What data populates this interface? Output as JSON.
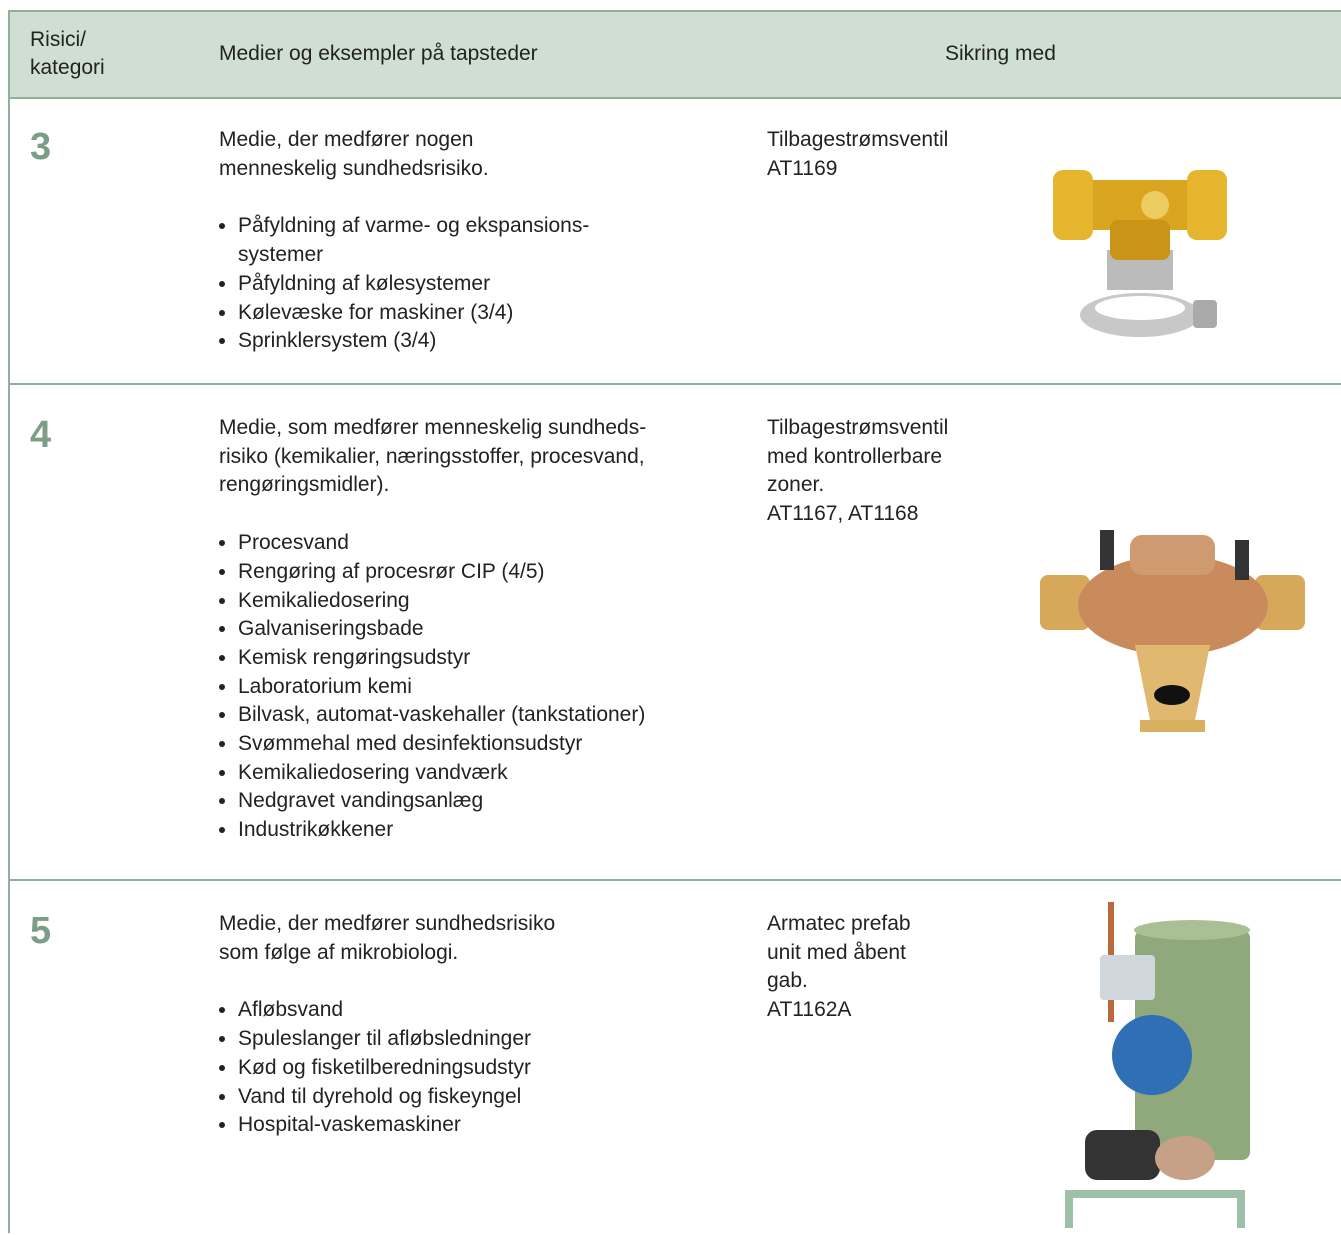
{
  "header": {
    "category": [
      "Risici/",
      "kategori"
    ],
    "media": "Medier og eksempler på tapsteder",
    "protection": "Sikring med"
  },
  "rows": [
    {
      "category": "3",
      "description": [
        "Medie, der medfører nogen",
        "menneskelig sundhedsrisiko."
      ],
      "examples": [
        [
          "Påfyldning af varme- og ekspansions-",
          "systemer"
        ],
        [
          "Påfyldning af kølesystemer"
        ],
        [
          "Kølevæske for maskiner (3/4)"
        ],
        [
          "Sprinklersystem (3/4)"
        ]
      ],
      "product": [
        "Tilbagestrømsventil",
        "AT1169"
      ]
    },
    {
      "category": "4",
      "description": [
        "Medie, som medfører menneskelig sundheds-",
        "risiko (kemikalier, næringsstoffer, procesvand,",
        "rengøringsmidler)."
      ],
      "examples": [
        [
          "Procesvand"
        ],
        [
          "Rengøring af procesrør CIP (4/5)"
        ],
        [
          "Kemikaliedosering"
        ],
        [
          "Galvaniseringsbade"
        ],
        [
          "Kemisk rengøringsudstyr"
        ],
        [
          "Laboratorium kemi"
        ],
        [
          "Bilvask, automat-vaskehaller (tankstationer)"
        ],
        [
          "Svømmehal med desinfektionsudstyr"
        ],
        [
          "Kemikaliedosering vandværk"
        ],
        [
          "Nedgravet vandingsanlæg"
        ],
        [
          "Industrikøkkener"
        ]
      ],
      "product": [
        "Tilbagestrømsventil",
        "med kontrollerbare",
        "zoner.",
        "AT1167, AT1168"
      ]
    },
    {
      "category": "5",
      "description": [
        "Medie, der medfører sundhedsrisiko",
        "som følge af mikrobiologi."
      ],
      "examples": [
        [
          "Afløbsvand"
        ],
        [
          "Spuleslanger til afløbsledninger"
        ],
        [
          "Kød og fisketilberedningsudstyr"
        ],
        [
          "Vand til dyrehold og fiskeyngel"
        ],
        [
          "Hospital-vaskemaskiner"
        ]
      ],
      "product": [
        "Armatec prefab",
        "unit med åbent",
        "gab.",
        "AT1162A"
      ]
    }
  ]
}
